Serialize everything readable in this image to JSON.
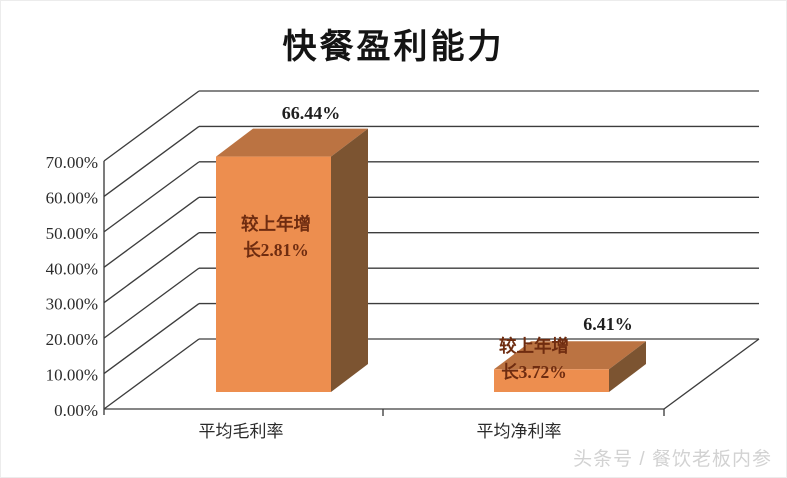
{
  "chart_data": {
    "type": "bar",
    "subtype": "3d-column",
    "title": "快餐盈利能力",
    "categories": [
      "平均毛利率",
      "平均净利率"
    ],
    "values": [
      66.44,
      6.41
    ],
    "data_labels": [
      "66.44%",
      "6.41%"
    ],
    "bar_annotations": [
      "较上年增长2.81%",
      "较上年增长3.72%"
    ],
    "xlabel": "",
    "ylabel": "",
    "ylim": [
      0,
      70
    ],
    "ytick_step": 10,
    "yticks": [
      "0.00%",
      "10.00%",
      "20.00%",
      "30.00%",
      "40.00%",
      "50.00%",
      "60.00%",
      "70.00%"
    ],
    "grid": true,
    "legend_position": "none",
    "colors": {
      "bar_front": "#ED8E4F",
      "bar_top": "#BB7342",
      "bar_side": "#7C5431",
      "annotation_text": "#6F2C10",
      "gridline": "#3d3d3d",
      "axis_text": "#2b2b2b",
      "value_text": "#1f1f1f",
      "title_text": "#141414",
      "background": "#ffffff",
      "watermark_text": "#d2d2d2"
    }
  },
  "watermark": {
    "text": "头条号 / 餐饮老板内参"
  }
}
